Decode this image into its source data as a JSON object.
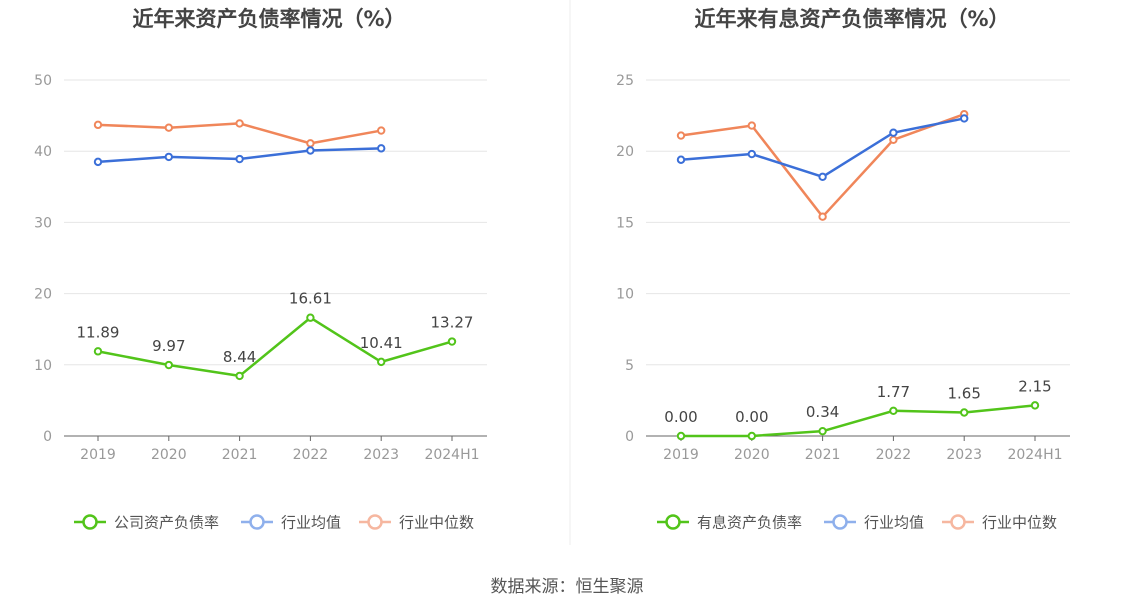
{
  "source": "数据来源：恒生聚源",
  "chart_data": [
    {
      "type": "line",
      "title": "近年来资产负债率情况（%）",
      "categories": [
        "2019",
        "2020",
        "2021",
        "2022",
        "2023",
        "2024H1"
      ],
      "ylim": [
        0,
        50
      ],
      "yticks": [
        0,
        10,
        20,
        30,
        40,
        50
      ],
      "grid": true,
      "legend_position": "bottom",
      "series": [
        {
          "name": "公司资产负债率",
          "color": "#52c41a",
          "values": [
            11.89,
            9.97,
            8.44,
            16.61,
            10.41,
            13.27
          ],
          "labels": [
            "11.89",
            "9.97",
            "8.44",
            "16.61",
            "10.41",
            "13.27"
          ]
        },
        {
          "name": "行业均值",
          "color": "#3b6fd8",
          "legend_color": "#8fb0ec",
          "values": [
            38.5,
            39.2,
            38.9,
            40.1,
            40.4,
            null
          ]
        },
        {
          "name": "行业中位数",
          "color": "#f0865a",
          "legend_color": "#f6b7a0",
          "values": [
            43.7,
            43.3,
            43.9,
            41.1,
            42.9,
            null
          ]
        }
      ]
    },
    {
      "type": "line",
      "title": "近年来有息资产负债率情况（%）",
      "categories": [
        "2019",
        "2020",
        "2021",
        "2022",
        "2023",
        "2024H1"
      ],
      "ylim": [
        0,
        25
      ],
      "yticks": [
        0,
        5,
        10,
        15,
        20,
        25
      ],
      "grid": true,
      "legend_position": "bottom",
      "series": [
        {
          "name": "有息资产负债率",
          "color": "#52c41a",
          "values": [
            0.0,
            0.0,
            0.34,
            1.77,
            1.65,
            2.15
          ],
          "labels": [
            "0.00",
            "0.00",
            "0.34",
            "1.77",
            "1.65",
            "2.15"
          ]
        },
        {
          "name": "行业均值",
          "color": "#3b6fd8",
          "legend_color": "#8fb0ec",
          "values": [
            19.4,
            19.8,
            18.2,
            21.3,
            22.3,
            null
          ]
        },
        {
          "name": "行业中位数",
          "color": "#f0865a",
          "legend_color": "#f6b7a0",
          "values": [
            21.1,
            21.8,
            15.4,
            20.8,
            22.6,
            null
          ]
        }
      ]
    }
  ]
}
